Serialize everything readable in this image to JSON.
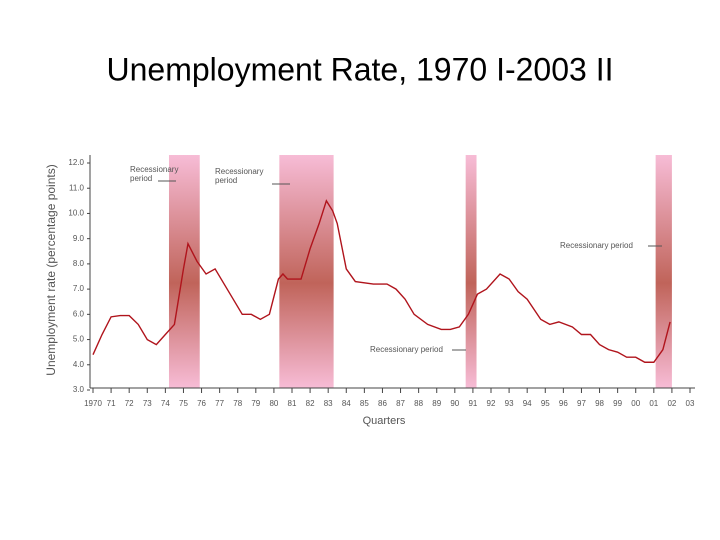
{
  "chart_data": {
    "type": "line",
    "title": "Unemployment Rate, 1970 I-2003 II",
    "y_label": "Unemployment rate (percentage points)",
    "x_label": "Quarters",
    "xlim": [
      1970,
      2003
    ],
    "xticks": [
      {
        "value": 1970,
        "label": "1970"
      },
      {
        "value": 1971,
        "label": "71"
      },
      {
        "value": 1972,
        "label": "72"
      },
      {
        "value": 1973,
        "label": "73"
      },
      {
        "value": 1974,
        "label": "74"
      },
      {
        "value": 1975,
        "label": "75"
      },
      {
        "value": 1976,
        "label": "76"
      },
      {
        "value": 1977,
        "label": "77"
      },
      {
        "value": 1978,
        "label": "78"
      },
      {
        "value": 1979,
        "label": "79"
      },
      {
        "value": 1980,
        "label": "80"
      },
      {
        "value": 1981,
        "label": "81"
      },
      {
        "value": 1982,
        "label": "82"
      },
      {
        "value": 1983,
        "label": "83"
      },
      {
        "value": 1984,
        "label": "84"
      },
      {
        "value": 1985,
        "label": "85"
      },
      {
        "value": 1986,
        "label": "86"
      },
      {
        "value": 1987,
        "label": "87"
      },
      {
        "value": 1988,
        "label": "88"
      },
      {
        "value": 1989,
        "label": "89"
      },
      {
        "value": 1990,
        "label": "90"
      },
      {
        "value": 1991,
        "label": "91"
      },
      {
        "value": 1992,
        "label": "92"
      },
      {
        "value": 1993,
        "label": "93"
      },
      {
        "value": 1994,
        "label": "94"
      },
      {
        "value": 1995,
        "label": "95"
      },
      {
        "value": 1996,
        "label": "96"
      },
      {
        "value": 1997,
        "label": "97"
      },
      {
        "value": 1998,
        "label": "98"
      },
      {
        "value": 1999,
        "label": "99"
      },
      {
        "value": 2000,
        "label": "00"
      },
      {
        "value": 2001,
        "label": "01"
      },
      {
        "value": 2002,
        "label": "02"
      },
      {
        "value": 2003,
        "label": "03"
      }
    ],
    "ylim": [
      3,
      12
    ],
    "yticks": [
      {
        "value": 3,
        "label": "3.0"
      },
      {
        "value": 4,
        "label": "4.0"
      },
      {
        "value": 5,
        "label": "5.0"
      },
      {
        "value": 6,
        "label": "6.0"
      },
      {
        "value": 7,
        "label": "7.0"
      },
      {
        "value": 8,
        "label": "8.0"
      },
      {
        "value": 9,
        "label": "9.0"
      },
      {
        "value": 10,
        "label": "10.0"
      },
      {
        "value": 11,
        "label": "11.0"
      },
      {
        "value": 12,
        "label": "12.0"
      }
    ],
    "recessions": [
      [
        1974.2,
        1975.9
      ],
      [
        1980.3,
        1983.3
      ],
      [
        1990.6,
        1991.2
      ],
      [
        2001.1,
        2002.0
      ]
    ],
    "recession_color": "#c0645a",
    "annotations": [
      {
        "text": [
          "Recessionary",
          "period"
        ]
      },
      {
        "text": [
          "Recessionary",
          "period"
        ]
      },
      {
        "text": [
          "Recessionary period"
        ]
      },
      {
        "text": [
          "Recessionary period"
        ]
      }
    ],
    "series": [
      {
        "color": "#b0141c",
        "x": [
          1970.0,
          1970.5,
          1971.0,
          1971.5,
          1972.0,
          1972.5,
          1973.0,
          1973.5,
          1974.0,
          1974.5,
          1975.0,
          1975.25,
          1975.75,
          1976.25,
          1976.75,
          1977.25,
          1977.75,
          1978.25,
          1978.75,
          1979.25,
          1979.75,
          1980.25,
          1980.5,
          1980.75,
          1981.25,
          1981.5,
          1982.0,
          1982.5,
          1982.9,
          1983.25,
          1983.5,
          1984.0,
          1984.5,
          1985.5,
          1986.25,
          1986.75,
          1987.25,
          1987.75,
          1988.5,
          1989.25,
          1989.75,
          1990.25,
          1990.75,
          1991.25,
          1991.75,
          1992.5,
          1993.0,
          1993.5,
          1994.0,
          1994.75,
          1995.25,
          1995.75,
          1996.5,
          1997.0,
          1997.5,
          1998.0,
          1998.5,
          1999.0,
          1999.5,
          2000.0,
          2000.5,
          2001.0,
          2001.5,
          2001.9
        ],
        "values": [
          4.4,
          5.2,
          5.9,
          5.95,
          5.95,
          5.6,
          5.0,
          4.8,
          5.2,
          5.6,
          7.8,
          8.8,
          8.1,
          7.6,
          7.8,
          7.2,
          6.6,
          6.0,
          6.0,
          5.8,
          6.0,
          7.4,
          7.6,
          7.4,
          7.4,
          7.4,
          8.6,
          9.6,
          10.5,
          10.1,
          9.6,
          7.8,
          7.3,
          7.2,
          7.2,
          7.0,
          6.6,
          6.0,
          5.6,
          5.4,
          5.4,
          5.5,
          6.0,
          6.8,
          7.0,
          7.6,
          7.4,
          6.9,
          6.6,
          5.8,
          5.6,
          5.7,
          5.5,
          5.2,
          5.2,
          4.8,
          4.6,
          4.5,
          4.3,
          4.3,
          4.1,
          4.1,
          4.6,
          5.7
        ]
      }
    ]
  }
}
